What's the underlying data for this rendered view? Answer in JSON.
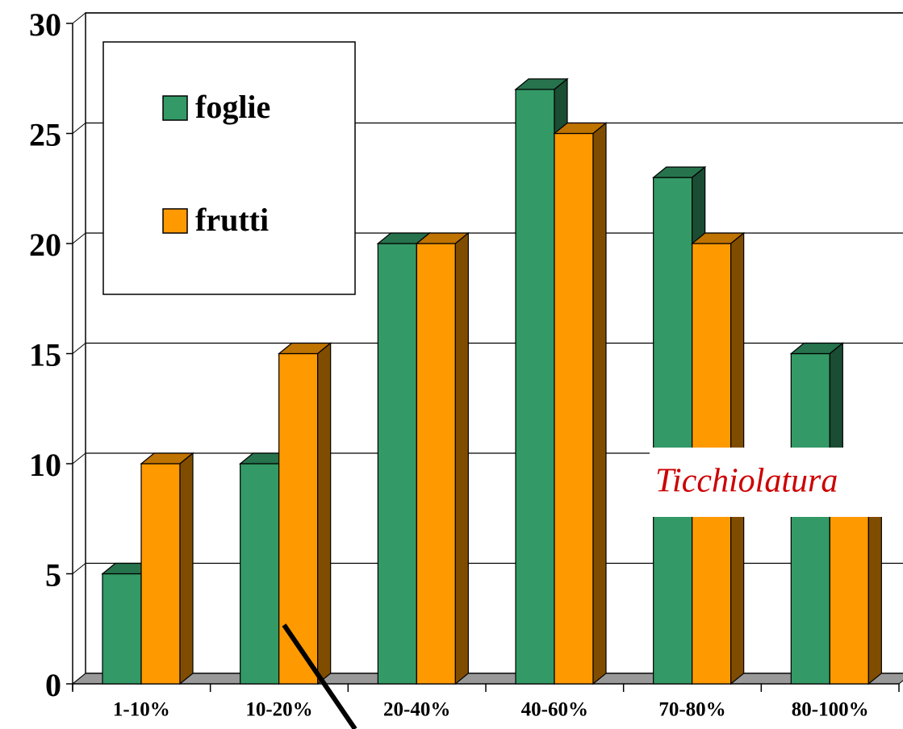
{
  "chart_data": {
    "type": "bar3d",
    "categories": [
      "1-10%",
      "10-20%",
      "20-40%",
      "40-60%",
      "70-80%",
      "80-100%"
    ],
    "series": [
      {
        "name": "foglie",
        "color": "#339966",
        "values": [
          5,
          10,
          20,
          27,
          23,
          15
        ]
      },
      {
        "name": "frutti",
        "color": "#ff9900",
        "values": [
          10,
          15,
          20,
          25,
          20,
          10
        ]
      }
    ],
    "ylim": [
      0,
      30
    ],
    "yticks": [
      0,
      5,
      10,
      15,
      20,
      25,
      30
    ],
    "grid": true,
    "legend": "upper left",
    "annotation": "Ticchiolatura"
  }
}
